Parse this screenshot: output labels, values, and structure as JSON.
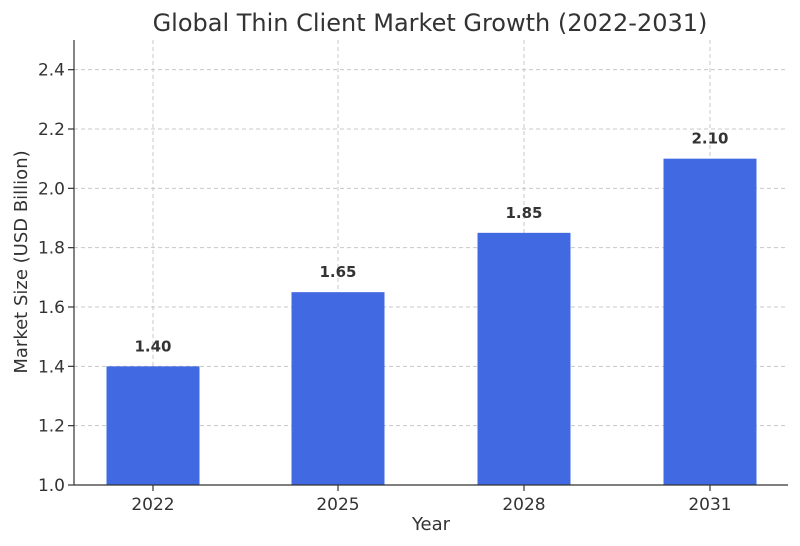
{
  "chart_data": {
    "type": "bar",
    "title": "Global Thin Client Market Growth (2022-2031)",
    "xlabel": "Year",
    "ylabel": "Market Size (USD Billion)",
    "categories": [
      "2022",
      "2025",
      "2028",
      "2031"
    ],
    "values": [
      1.4,
      1.65,
      1.85,
      2.1
    ],
    "data_labels": [
      "1.40",
      "1.65",
      "1.85",
      "2.10"
    ],
    "ylim": [
      1.0,
      2.5
    ],
    "yticks": [
      1.0,
      1.2,
      1.4,
      1.6,
      1.8,
      2.0,
      2.2,
      2.4
    ],
    "ytick_labels": [
      "1.0",
      "1.2",
      "1.4",
      "1.6",
      "1.8",
      "2.0",
      "2.2",
      "2.4"
    ],
    "grid": true,
    "bar_color": "#4169e1"
  }
}
